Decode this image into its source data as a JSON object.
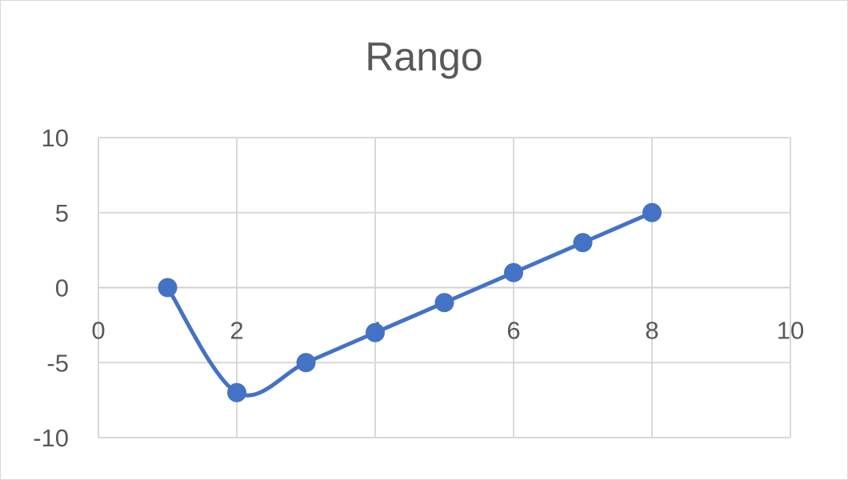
{
  "chart_data": {
    "type": "scatter",
    "title": "Rango",
    "xlabel": "",
    "ylabel": "",
    "xlim": [
      0,
      10
    ],
    "ylim": [
      -10,
      10
    ],
    "x_ticks": [
      0,
      2,
      4,
      6,
      8,
      10
    ],
    "y_ticks": [
      10,
      5,
      0,
      -5,
      -10
    ],
    "grid": true,
    "legend": "none",
    "line_style": "smooth",
    "series": [
      {
        "color": "#4472C4",
        "x": [
          1,
          2,
          3,
          4,
          5,
          6,
          7,
          8
        ],
        "y": [
          0,
          -7,
          -5,
          -3,
          -1,
          1,
          3,
          5
        ]
      }
    ]
  }
}
